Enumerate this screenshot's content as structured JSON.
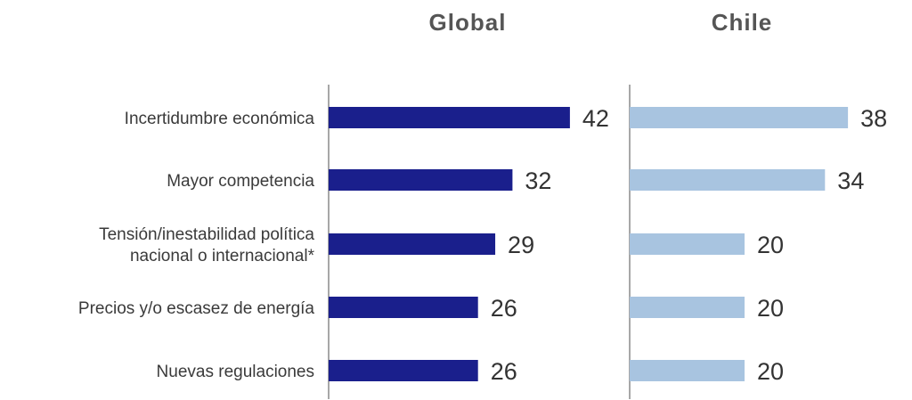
{
  "chart_data": [
    {
      "type": "bar",
      "orientation": "horizontal",
      "title": "Global",
      "categories": [
        "Incertidumbre económica",
        "Mayor competencia",
        "Tensión/inestabilidad política nacional o internacional*",
        "Precios y/o escasez de energía",
        "Nuevas regulaciones"
      ],
      "category_lines": [
        [
          "Incertidumbre económica"
        ],
        [
          "Mayor competencia"
        ],
        [
          "Tensión/inestabilidad política",
          "nacional o internacional*"
        ],
        [
          "Precios y/o escasez de energía"
        ],
        [
          "Nuevas regulaciones"
        ]
      ],
      "values": [
        42,
        32,
        29,
        26,
        26
      ],
      "color": "#1a1f8c",
      "xlim": [
        0,
        50
      ]
    },
    {
      "type": "bar",
      "orientation": "horizontal",
      "title": "Chile",
      "categories": [
        "Incertidumbre económica",
        "Mayor competencia",
        "Tensión/inestabilidad política nacional o internacional*",
        "Precios y/o escasez de energía",
        "Nuevas regulaciones"
      ],
      "values": [
        38,
        34,
        20,
        20,
        20
      ],
      "color": "#a8c4e0",
      "xlim": [
        0,
        50
      ]
    }
  ]
}
